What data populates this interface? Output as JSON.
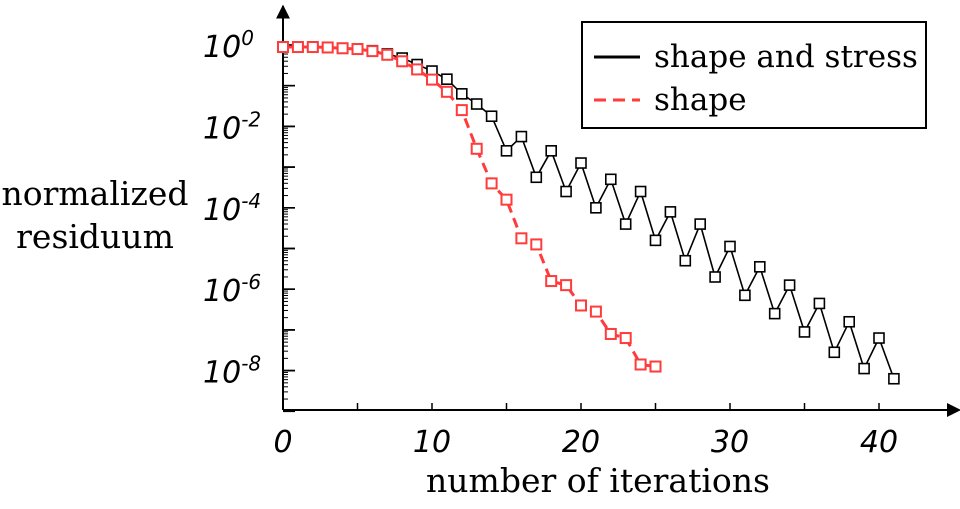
{
  "chart_data": {
    "type": "line",
    "xlabel": "number of iterations",
    "ylabel_line1": "normalized",
    "ylabel_line2": "residuum",
    "y_scale": "log10",
    "xlim": [
      0,
      45
    ],
    "ylim_exponent": [
      -9.3,
      0.4
    ],
    "x_ticks": [
      0,
      10,
      20,
      30,
      40
    ],
    "y_tick_labels": [
      {
        "base": "10",
        "exp": "0",
        "value": 0
      },
      {
        "base": "10",
        "exp": "-2",
        "value": -2
      },
      {
        "base": "10",
        "exp": "-4",
        "value": -4
      },
      {
        "base": "10",
        "exp": "-6",
        "value": -6
      },
      {
        "base": "10",
        "exp": "-8",
        "value": -8
      }
    ],
    "series": [
      {
        "name": "shape and stress",
        "color": "#000000",
        "dash": "solid",
        "x": [
          0,
          1,
          2,
          3,
          4,
          5,
          6,
          7,
          8,
          9,
          10,
          11,
          12,
          13,
          14,
          15,
          16,
          17,
          18,
          19,
          20,
          21,
          22,
          23,
          24,
          25,
          26,
          27,
          28,
          29,
          30,
          31,
          32,
          33,
          34,
          35,
          36,
          37,
          38,
          39,
          40,
          41
        ],
        "log10_y": [
          -0.05,
          -0.05,
          -0.05,
          -0.06,
          -0.08,
          -0.1,
          -0.14,
          -0.22,
          -0.32,
          -0.48,
          -0.64,
          -0.84,
          -1.2,
          -1.45,
          -1.75,
          -2.6,
          -2.25,
          -3.25,
          -2.6,
          -3.6,
          -2.9,
          -4.0,
          -3.3,
          -4.4,
          -3.6,
          -4.8,
          -4.1,
          -5.3,
          -4.4,
          -5.7,
          -4.95,
          -6.15,
          -5.45,
          -6.6,
          -5.9,
          -7.05,
          -6.35,
          -7.55,
          -6.8,
          -7.95,
          -7.2,
          -8.2
        ]
      },
      {
        "name": "shape",
        "color": "#ff3b3b",
        "dash": "dashed",
        "x": [
          0,
          1,
          2,
          3,
          4,
          5,
          6,
          7,
          8,
          9,
          10,
          11,
          12,
          13,
          14,
          15,
          16,
          17,
          18,
          19,
          20,
          21,
          22,
          23,
          24,
          25
        ],
        "log10_y": [
          -0.05,
          -0.05,
          -0.05,
          -0.06,
          -0.08,
          -0.1,
          -0.15,
          -0.24,
          -0.4,
          -0.6,
          -0.85,
          -1.15,
          -1.6,
          -2.55,
          -3.4,
          -3.8,
          -4.75,
          -4.9,
          -5.8,
          -5.9,
          -6.4,
          -6.55,
          -7.1,
          -7.2,
          -7.85,
          -7.9
        ]
      }
    ],
    "legend": {
      "position": "top-right"
    }
  }
}
